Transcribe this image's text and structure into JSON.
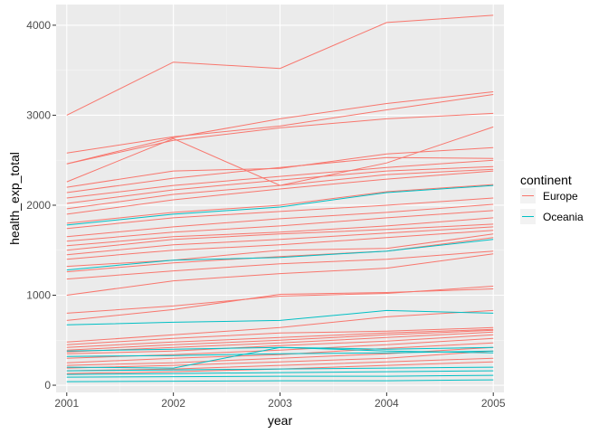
{
  "chart_data": {
    "type": "line",
    "title": "",
    "xlabel": "year",
    "ylabel": "health_exp_total",
    "x": [
      2001,
      2002,
      2003,
      2004,
      2005
    ],
    "xlim": [
      2000.9,
      2005.1
    ],
    "ylim": [
      -80,
      4230
    ],
    "x_ticks": [
      "2001",
      "2002",
      "2003",
      "2004",
      "2005"
    ],
    "y_ticks": [
      0,
      1000,
      2000,
      3000,
      4000
    ],
    "y_tick_labels": [
      "0",
      "1000",
      "2000",
      "3000",
      "4000"
    ],
    "grid": true,
    "legend": {
      "title": "continent",
      "placement": "right",
      "entries": [
        {
          "label": "Europe",
          "color": "#F8766D"
        },
        {
          "label": "Oceania",
          "color": "#00BFC4"
        }
      ]
    },
    "series": [
      {
        "group": "Europe",
        "values": [
          3000,
          3590,
          3520,
          4030,
          4110
        ]
      },
      {
        "group": "Europe",
        "values": [
          2460,
          2750,
          2960,
          3130,
          3260
        ]
      },
      {
        "group": "Europe",
        "values": [
          2580,
          2760,
          2880,
          3060,
          3230
        ]
      },
      {
        "group": "Europe",
        "values": [
          2460,
          2720,
          2860,
          2960,
          3020
        ]
      },
      {
        "group": "Europe",
        "values": [
          2260,
          2740,
          2220,
          2470,
          2870
        ]
      },
      {
        "group": "Europe",
        "values": [
          2200,
          2380,
          2410,
          2570,
          2640
        ]
      },
      {
        "group": "Europe",
        "values": [
          2140,
          2300,
          2420,
          2530,
          2520
        ]
      },
      {
        "group": "Europe",
        "values": [
          2080,
          2220,
          2320,
          2420,
          2500
        ]
      },
      {
        "group": "Europe",
        "values": [
          2020,
          2170,
          2280,
          2380,
          2430
        ]
      },
      {
        "group": "Europe",
        "values": [
          1960,
          2120,
          2220,
          2340,
          2400
        ]
      },
      {
        "group": "Europe",
        "values": [
          1900,
          2060,
          2180,
          2290,
          2380
        ]
      },
      {
        "group": "Europe",
        "values": [
          1800,
          1920,
          2000,
          2150,
          2230
        ]
      },
      {
        "group": "Europe",
        "values": [
          1740,
          1860,
          1930,
          2000,
          2080
        ]
      },
      {
        "group": "Europe",
        "values": [
          1650,
          1760,
          1850,
          1920,
          2010
        ]
      },
      {
        "group": "Europe",
        "values": [
          1600,
          1700,
          1770,
          1860,
          1940
        ]
      },
      {
        "group": "Europe",
        "values": [
          1550,
          1650,
          1700,
          1770,
          1860
        ]
      },
      {
        "group": "Europe",
        "values": [
          1500,
          1620,
          1680,
          1730,
          1790
        ]
      },
      {
        "group": "Europe",
        "values": [
          1450,
          1560,
          1620,
          1690,
          1760
        ]
      },
      {
        "group": "Europe",
        "values": [
          1400,
          1500,
          1560,
          1640,
          1720
        ]
      },
      {
        "group": "Europe",
        "values": [
          1320,
          1390,
          1500,
          1520,
          1680
        ]
      },
      {
        "group": "Europe",
        "values": [
          1260,
          1360,
          1430,
          1490,
          1640
        ]
      },
      {
        "group": "Europe",
        "values": [
          1180,
          1270,
          1350,
          1400,
          1490
        ]
      },
      {
        "group": "Europe",
        "values": [
          1000,
          1160,
          1240,
          1300,
          1460
        ]
      },
      {
        "group": "Europe",
        "values": [
          800,
          880,
          990,
          1020,
          1100
        ]
      },
      {
        "group": "Europe",
        "values": [
          720,
          840,
          1010,
          1030,
          1070
        ]
      },
      {
        "group": "Europe",
        "values": [
          480,
          560,
          640,
          760,
          830
        ]
      },
      {
        "group": "Europe",
        "values": [
          450,
          520,
          580,
          600,
          640
        ]
      },
      {
        "group": "Europe",
        "values": [
          420,
          480,
          530,
          580,
          620
        ]
      },
      {
        "group": "Europe",
        "values": [
          390,
          450,
          500,
          560,
          610
        ]
      },
      {
        "group": "Europe",
        "values": [
          370,
          420,
          470,
          530,
          590
        ]
      },
      {
        "group": "Europe",
        "values": [
          350,
          380,
          440,
          490,
          560
        ]
      },
      {
        "group": "Europe",
        "values": [
          300,
          340,
          390,
          450,
          520
        ]
      },
      {
        "group": "Europe",
        "values": [
          250,
          300,
          340,
          410,
          470
        ]
      },
      {
        "group": "Europe",
        "values": [
          220,
          250,
          300,
          350,
          420
        ]
      },
      {
        "group": "Europe",
        "values": [
          190,
          220,
          260,
          300,
          380
        ]
      },
      {
        "group": "Europe",
        "values": [
          160,
          180,
          220,
          260,
          300
        ]
      },
      {
        "group": "Europe",
        "values": [
          130,
          150,
          180,
          220,
          260
        ]
      },
      {
        "group": "Oceania",
        "values": [
          1780,
          1900,
          1980,
          2140,
          2220
        ]
      },
      {
        "group": "Oceania",
        "values": [
          1280,
          1390,
          1420,
          1490,
          1620
        ]
      },
      {
        "group": "Oceania",
        "values": [
          670,
          700,
          720,
          830,
          800
        ]
      },
      {
        "group": "Oceania",
        "values": [
          380,
          400,
          420,
          400,
          420
        ]
      },
      {
        "group": "Oceania",
        "values": [
          320,
          330,
          350,
          360,
          380
        ]
      },
      {
        "group": "Oceania",
        "values": [
          200,
          190,
          420,
          380,
          360
        ]
      },
      {
        "group": "Oceania",
        "values": [
          160,
          170,
          180,
          190,
          200
        ]
      },
      {
        "group": "Oceania",
        "values": [
          120,
          130,
          140,
          150,
          160
        ]
      },
      {
        "group": "Oceania",
        "values": [
          90,
          95,
          100,
          100,
          110
        ]
      },
      {
        "group": "Oceania",
        "values": [
          40,
          45,
          50,
          50,
          60
        ]
      }
    ]
  }
}
